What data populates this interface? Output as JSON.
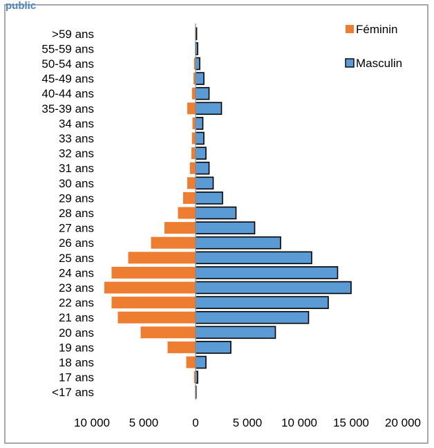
{
  "header": {
    "partial_text": "public"
  },
  "chart_data": {
    "type": "bar",
    "orientation": "horizontal",
    "layout": "population-pyramid",
    "categories": [
      ">59 ans",
      "55-59 ans",
      "50-54 ans",
      "45-49 ans",
      "40-44 ans",
      "35-39 ans",
      "34 ans",
      "33 ans",
      "32 ans",
      "31 ans",
      "30 ans",
      "29 ans",
      "28 ans",
      "27 ans",
      "26 ans",
      "25 ans",
      "24 ans",
      "23 ans",
      "22 ans",
      "21 ans",
      "20 ans",
      "19 ans",
      "18 ans",
      "17 ans",
      "<17 ans"
    ],
    "series": [
      {
        "name": "Féminin",
        "color": "#ed7d31",
        "side": "left",
        "values": [
          20,
          50,
          150,
          200,
          350,
          800,
          300,
          350,
          400,
          550,
          800,
          1200,
          1700,
          3000,
          4300,
          6500,
          8100,
          8800,
          8100,
          7500,
          5300,
          2700,
          900,
          150,
          40
        ]
      },
      {
        "name": "Masculin",
        "color": "#5b9bd5",
        "side": "right",
        "values": [
          100,
          200,
          400,
          800,
          1300,
          2500,
          700,
          800,
          1000,
          1300,
          1700,
          2600,
          3900,
          5700,
          8200,
          11200,
          13700,
          15000,
          12800,
          10900,
          7700,
          3400,
          1000,
          200,
          50
        ]
      }
    ],
    "x_ticks": [
      "10 000",
      "5 000",
      "0",
      "5 000",
      "10 000",
      "15 000",
      "20 000"
    ],
    "xlim": [
      -10000,
      20000
    ],
    "legend": {
      "placement": "top-right",
      "entries": [
        "Féminin",
        "Masculin"
      ]
    },
    "grid": false,
    "title": "",
    "xlabel": "",
    "ylabel": ""
  }
}
